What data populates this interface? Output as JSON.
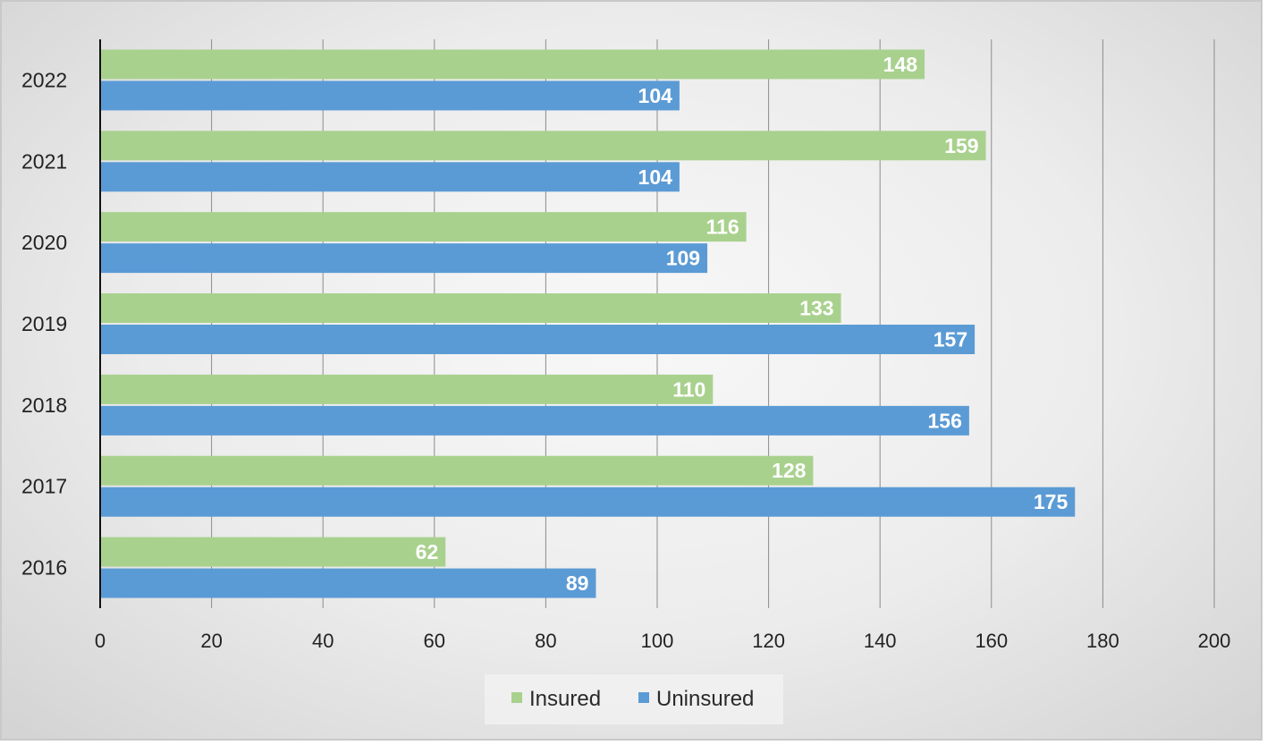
{
  "chart_data": {
    "type": "bar",
    "orientation": "horizontal",
    "title": "",
    "xlabel": "",
    "ylabel": "",
    "categories": [
      "2016",
      "2017",
      "2018",
      "2019",
      "2020",
      "2021",
      "2022"
    ],
    "series": [
      {
        "name": "Insured",
        "color": "#a9d18e",
        "values": [
          62,
          128,
          110,
          133,
          116,
          159,
          148
        ]
      },
      {
        "name": "Uninsured",
        "color": "#5b9bd5",
        "values": [
          89,
          175,
          156,
          157,
          109,
          104,
          104
        ]
      }
    ],
    "xlim": [
      0,
      200
    ],
    "xticks": [
      0,
      20,
      40,
      60,
      80,
      100,
      120,
      140,
      160,
      180,
      200
    ],
    "grid": true,
    "data_labels": true,
    "legend": {
      "placement": "bottom",
      "entries": [
        "Insured",
        "Uninsured"
      ]
    }
  }
}
